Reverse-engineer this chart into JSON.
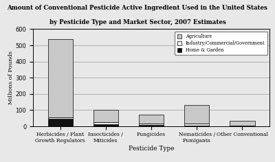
{
  "title_line1": "Amount of Conventional Pesticide Active Ingredient Used in the United States",
  "title_line2": "by Pesticide Type and Market Sector, 2007 Estimates",
  "xlabel": "Pesticide Type",
  "ylabel": "Millions of Pounds",
  "categories": [
    "Herbicides / Plant\nGrowth Regulators",
    "Insecticides /\nMiticides",
    "Fungicides",
    "Nematicides /\nFumigants",
    "Other Conventional"
  ],
  "agriculture": [
    480,
    75,
    55,
    115,
    30
  ],
  "industry": [
    12,
    12,
    8,
    12,
    2
  ],
  "home_garden": [
    45,
    15,
    8,
    5,
    2
  ],
  "ylim": [
    0,
    600
  ],
  "yticks": [
    0,
    100,
    200,
    300,
    400,
    500,
    600
  ],
  "ag_color": "#c8c8c8",
  "ind_color": "#f0f0f0",
  "hg_color": "#111111",
  "bar_width": 0.55,
  "legend_labels": [
    "Agriculture",
    "Industry/Commercial/Government",
    "Home & Garden"
  ],
  "background_color": "#e8e8e8",
  "plot_bg": "#e8e8e8",
  "edge_color": "#000000"
}
